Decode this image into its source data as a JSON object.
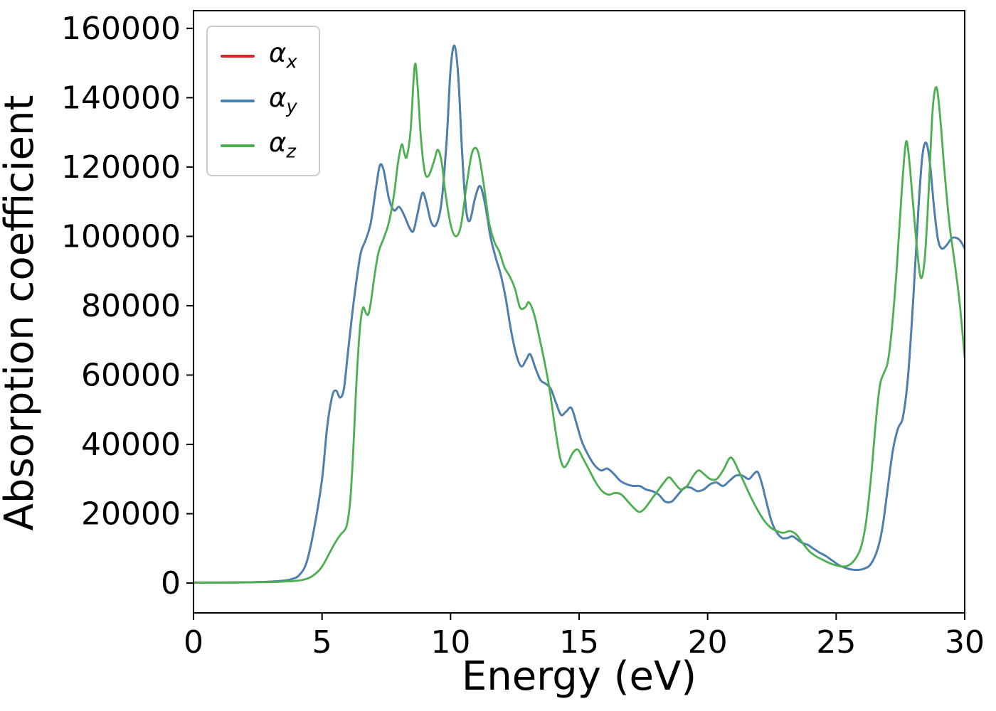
{
  "figure": {
    "background": "#ffffff"
  },
  "chart_data": {
    "type": "line",
    "title": "",
    "xlabel": "Energy (eV)",
    "ylabel": "Absorption coefficient",
    "xlim": [
      0,
      30
    ],
    "ylim": [
      -8600,
      165100
    ],
    "xticks": [
      0,
      5,
      10,
      15,
      20,
      25,
      30
    ],
    "yticks": [
      0,
      20000,
      40000,
      60000,
      80000,
      100000,
      120000,
      140000,
      160000
    ],
    "grid": false,
    "legend": {
      "position": "upper-left"
    },
    "series": [
      {
        "name": "alpha_x",
        "label_symbol": "α",
        "label_sub": "x",
        "color": "#d62728",
        "note": "curve coincides with alpha_y and is hidden beneath it",
        "points": "same_as:alpha_y"
      },
      {
        "name": "alpha_y",
        "label_symbol": "α",
        "label_sub": "y",
        "color": "#4682b4",
        "points": [
          [
            0,
            150
          ],
          [
            0.5,
            150
          ],
          [
            1,
            160
          ],
          [
            1.5,
            180
          ],
          [
            2,
            220
          ],
          [
            2.5,
            300
          ],
          [
            3,
            420
          ],
          [
            3.5,
            700
          ],
          [
            3.8,
            1100
          ],
          [
            4.1,
            2200
          ],
          [
            4.4,
            6000
          ],
          [
            4.7,
            16000
          ],
          [
            5.0,
            30000
          ],
          [
            5.2,
            45000
          ],
          [
            5.4,
            54000
          ],
          [
            5.55,
            55500
          ],
          [
            5.7,
            53500
          ],
          [
            5.85,
            56000
          ],
          [
            6.0,
            66000
          ],
          [
            6.15,
            76000
          ],
          [
            6.3,
            85000
          ],
          [
            6.5,
            95000
          ],
          [
            6.7,
            99000
          ],
          [
            6.9,
            104000
          ],
          [
            7.1,
            114000
          ],
          [
            7.25,
            120500
          ],
          [
            7.4,
            119000
          ],
          [
            7.6,
            111000
          ],
          [
            7.8,
            107500
          ],
          [
            8.0,
            108500
          ],
          [
            8.2,
            106000
          ],
          [
            8.4,
            102500
          ],
          [
            8.55,
            101500
          ],
          [
            8.7,
            106000
          ],
          [
            8.9,
            112500
          ],
          [
            9.05,
            110000
          ],
          [
            9.25,
            104000
          ],
          [
            9.45,
            103500
          ],
          [
            9.65,
            110000
          ],
          [
            9.85,
            128000
          ],
          [
            10.0,
            148000
          ],
          [
            10.15,
            155000
          ],
          [
            10.3,
            146000
          ],
          [
            10.45,
            124000
          ],
          [
            10.6,
            108000
          ],
          [
            10.75,
            104500
          ],
          [
            10.95,
            111000
          ],
          [
            11.15,
            114500
          ],
          [
            11.35,
            109000
          ],
          [
            11.55,
            100000
          ],
          [
            11.75,
            94000
          ],
          [
            11.95,
            89000
          ],
          [
            12.15,
            82000
          ],
          [
            12.35,
            73000
          ],
          [
            12.55,
            66000
          ],
          [
            12.75,
            62500
          ],
          [
            12.95,
            64500
          ],
          [
            13.1,
            66000
          ],
          [
            13.3,
            62000
          ],
          [
            13.5,
            58500
          ],
          [
            13.7,
            57500
          ],
          [
            13.9,
            56000
          ],
          [
            14.1,
            52000
          ],
          [
            14.3,
            48500
          ],
          [
            14.5,
            49500
          ],
          [
            14.7,
            50500
          ],
          [
            14.9,
            46000
          ],
          [
            15.1,
            41000
          ],
          [
            15.35,
            37000
          ],
          [
            15.6,
            34000
          ],
          [
            15.85,
            32500
          ],
          [
            16.1,
            33000
          ],
          [
            16.35,
            31500
          ],
          [
            16.6,
            29500
          ],
          [
            16.85,
            28500
          ],
          [
            17.1,
            28000
          ],
          [
            17.35,
            28000
          ],
          [
            17.6,
            27000
          ],
          [
            17.85,
            26500
          ],
          [
            18.1,
            25500
          ],
          [
            18.35,
            23500
          ],
          [
            18.6,
            23500
          ],
          [
            18.85,
            25500
          ],
          [
            19.1,
            27500
          ],
          [
            19.35,
            27500
          ],
          [
            19.6,
            26500
          ],
          [
            19.85,
            27000
          ],
          [
            20.1,
            28500
          ],
          [
            20.35,
            29000
          ],
          [
            20.6,
            28000
          ],
          [
            20.85,
            29500
          ],
          [
            21.1,
            31000
          ],
          [
            21.35,
            31000
          ],
          [
            21.6,
            30000
          ],
          [
            21.8,
            31500
          ],
          [
            21.95,
            32000
          ],
          [
            22.1,
            29000
          ],
          [
            22.3,
            23000
          ],
          [
            22.5,
            17500
          ],
          [
            22.7,
            14500
          ],
          [
            22.9,
            13000
          ],
          [
            23.1,
            13000
          ],
          [
            23.3,
            13500
          ],
          [
            23.5,
            12500
          ],
          [
            23.7,
            11500
          ],
          [
            23.9,
            11000
          ],
          [
            24.1,
            10000
          ],
          [
            24.35,
            8800
          ],
          [
            24.6,
            7800
          ],
          [
            24.85,
            6500
          ],
          [
            25.1,
            5200
          ],
          [
            25.35,
            4400
          ],
          [
            25.6,
            3900
          ],
          [
            25.85,
            3800
          ],
          [
            26.1,
            4200
          ],
          [
            26.35,
            5500
          ],
          [
            26.6,
            9500
          ],
          [
            26.8,
            16000
          ],
          [
            27.0,
            27000
          ],
          [
            27.2,
            38000
          ],
          [
            27.4,
            44500
          ],
          [
            27.6,
            48000
          ],
          [
            27.8,
            60000
          ],
          [
            28.0,
            82000
          ],
          [
            28.2,
            108000
          ],
          [
            28.35,
            123000
          ],
          [
            28.5,
            127000
          ],
          [
            28.65,
            121000
          ],
          [
            28.8,
            109000
          ],
          [
            28.95,
            99500
          ],
          [
            29.1,
            96500
          ],
          [
            29.3,
            97500
          ],
          [
            29.5,
            99500
          ],
          [
            29.7,
            99500
          ],
          [
            29.85,
            98500
          ],
          [
            30,
            96500
          ]
        ]
      },
      {
        "name": "alpha_z",
        "label_symbol": "α",
        "label_sub": "z",
        "color": "#4caf50",
        "points": [
          [
            0,
            120
          ],
          [
            0.5,
            120
          ],
          [
            1,
            130
          ],
          [
            1.5,
            150
          ],
          [
            2,
            180
          ],
          [
            2.5,
            230
          ],
          [
            3,
            300
          ],
          [
            3.5,
            420
          ],
          [
            4,
            650
          ],
          [
            4.3,
            1000
          ],
          [
            4.6,
            1900
          ],
          [
            4.9,
            3800
          ],
          [
            5.1,
            6000
          ],
          [
            5.3,
            8800
          ],
          [
            5.5,
            11500
          ],
          [
            5.7,
            13800
          ],
          [
            5.9,
            15500
          ],
          [
            6.0,
            18000
          ],
          [
            6.1,
            24000
          ],
          [
            6.2,
            36000
          ],
          [
            6.3,
            52000
          ],
          [
            6.4,
            66000
          ],
          [
            6.5,
            75500
          ],
          [
            6.6,
            79500
          ],
          [
            6.7,
            78000
          ],
          [
            6.8,
            77500
          ],
          [
            6.9,
            81000
          ],
          [
            7.05,
            89000
          ],
          [
            7.2,
            95500
          ],
          [
            7.4,
            99500
          ],
          [
            7.6,
            104000
          ],
          [
            7.8,
            112000
          ],
          [
            7.95,
            121000
          ],
          [
            8.1,
            126500
          ],
          [
            8.2,
            124000
          ],
          [
            8.3,
            123000
          ],
          [
            8.45,
            131000
          ],
          [
            8.6,
            149000
          ],
          [
            8.7,
            145000
          ],
          [
            8.85,
            128000
          ],
          [
            9.0,
            118500
          ],
          [
            9.15,
            117500
          ],
          [
            9.35,
            121500
          ],
          [
            9.5,
            125000
          ],
          [
            9.65,
            121500
          ],
          [
            9.8,
            112500
          ],
          [
            10.0,
            103500
          ],
          [
            10.2,
            100000
          ],
          [
            10.4,
            103000
          ],
          [
            10.6,
            113500
          ],
          [
            10.8,
            123000
          ],
          [
            10.95,
            125500
          ],
          [
            11.1,
            123500
          ],
          [
            11.3,
            114500
          ],
          [
            11.5,
            104000
          ],
          [
            11.7,
            98500
          ],
          [
            11.9,
            95500
          ],
          [
            12.1,
            91000
          ],
          [
            12.3,
            88500
          ],
          [
            12.5,
            85000
          ],
          [
            12.7,
            79500
          ],
          [
            12.9,
            79500
          ],
          [
            13.05,
            81000
          ],
          [
            13.25,
            77500
          ],
          [
            13.45,
            71000
          ],
          [
            13.65,
            64000
          ],
          [
            13.85,
            56000
          ],
          [
            14.05,
            45500
          ],
          [
            14.25,
            36500
          ],
          [
            14.4,
            33500
          ],
          [
            14.55,
            34500
          ],
          [
            14.75,
            37500
          ],
          [
            14.95,
            38500
          ],
          [
            15.15,
            36000
          ],
          [
            15.4,
            32500
          ],
          [
            15.65,
            29000
          ],
          [
            15.9,
            26500
          ],
          [
            16.15,
            25500
          ],
          [
            16.4,
            26000
          ],
          [
            16.65,
            25500
          ],
          [
            16.9,
            23500
          ],
          [
            17.15,
            21500
          ],
          [
            17.35,
            20500
          ],
          [
            17.55,
            21500
          ],
          [
            17.8,
            24000
          ],
          [
            18.05,
            26500
          ],
          [
            18.3,
            29000
          ],
          [
            18.5,
            30500
          ],
          [
            18.7,
            29000
          ],
          [
            18.95,
            27000
          ],
          [
            19.2,
            28000
          ],
          [
            19.45,
            31000
          ],
          [
            19.65,
            32500
          ],
          [
            19.85,
            31500
          ],
          [
            20.1,
            30000
          ],
          [
            20.35,
            30000
          ],
          [
            20.6,
            32500
          ],
          [
            20.85,
            36000
          ],
          [
            21.0,
            35500
          ],
          [
            21.2,
            32500
          ],
          [
            21.45,
            28500
          ],
          [
            21.7,
            24500
          ],
          [
            21.95,
            21000
          ],
          [
            22.2,
            18000
          ],
          [
            22.45,
            16000
          ],
          [
            22.7,
            15000
          ],
          [
            22.95,
            14500
          ],
          [
            23.2,
            15000
          ],
          [
            23.45,
            14000
          ],
          [
            23.7,
            11500
          ],
          [
            23.95,
            9200
          ],
          [
            24.2,
            7800
          ],
          [
            24.45,
            6800
          ],
          [
            24.7,
            5900
          ],
          [
            24.95,
            5200
          ],
          [
            25.2,
            4800
          ],
          [
            25.45,
            5000
          ],
          [
            25.7,
            6500
          ],
          [
            25.95,
            10000
          ],
          [
            26.15,
            17000
          ],
          [
            26.35,
            30000
          ],
          [
            26.55,
            47000
          ],
          [
            26.7,
            57000
          ],
          [
            26.85,
            60500
          ],
          [
            27.0,
            63500
          ],
          [
            27.15,
            72000
          ],
          [
            27.35,
            90000
          ],
          [
            27.55,
            113000
          ],
          [
            27.7,
            126500
          ],
          [
            27.8,
            125000
          ],
          [
            27.95,
            113000
          ],
          [
            28.15,
            96000
          ],
          [
            28.3,
            88000
          ],
          [
            28.45,
            94000
          ],
          [
            28.6,
            113000
          ],
          [
            28.75,
            136000
          ],
          [
            28.9,
            143000
          ],
          [
            29.05,
            134000
          ],
          [
            29.2,
            120000
          ],
          [
            29.4,
            104000
          ],
          [
            29.6,
            93000
          ],
          [
            29.8,
            81000
          ],
          [
            30,
            65000
          ]
        ]
      }
    ]
  }
}
